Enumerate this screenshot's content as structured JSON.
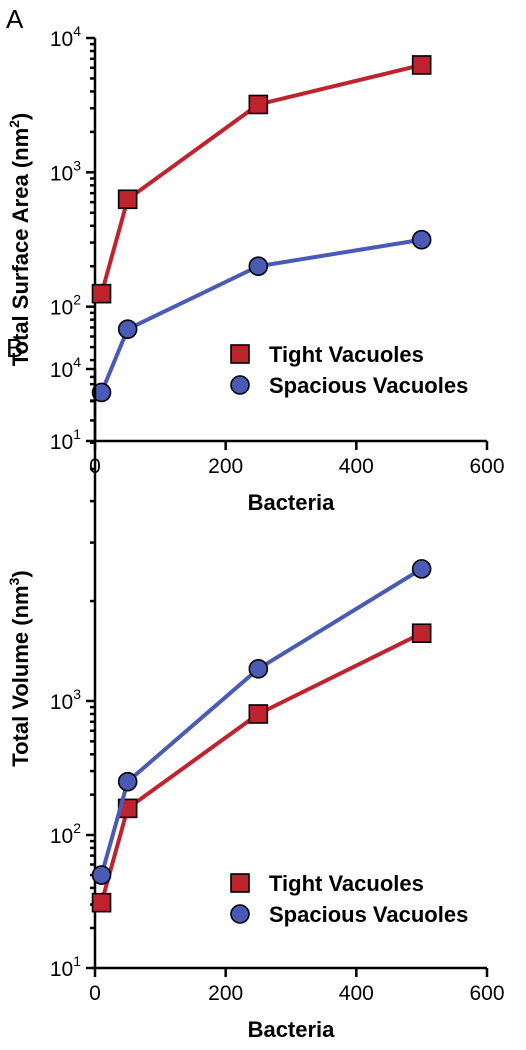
{
  "chart_data": [
    {
      "type": "line",
      "panel": "A",
      "xlabel": "Bacteria",
      "ylabel": "Total Surface Area (nm",
      "ylabel_sup": "2",
      "ylabel_end": ")",
      "xlim": [
        0,
        600
      ],
      "ylim": [
        10,
        10000
      ],
      "yscale": "log",
      "x_ticks": [
        "0",
        "200",
        "400",
        "600"
      ],
      "y_ticks": [
        {
          "base": "10",
          "exp": "1"
        },
        {
          "base": "10",
          "exp": "2"
        },
        {
          "base": "10",
          "exp": "3"
        },
        {
          "base": "10",
          "exp": "4"
        }
      ],
      "legend_position": "lower-right",
      "series": [
        {
          "name": "Tight Vacuoles",
          "marker": "square",
          "color": "#c0222e",
          "x": [
            10,
            50,
            250,
            500
          ],
          "y": [
            125,
            630,
            3200,
            6300
          ]
        },
        {
          "name": "Spacious Vacuoles",
          "marker": "circle",
          "color": "#4a5bb5",
          "x": [
            10,
            50,
            250,
            500
          ],
          "y": [
            23,
            68,
            200,
            315
          ]
        }
      ]
    },
    {
      "type": "line",
      "panel": "B",
      "xlabel": "Bacteria",
      "ylabel": "Total Volume (nm",
      "ylabel_sup": "3",
      "ylabel_end": ")",
      "xlim": [
        0,
        600
      ],
      "ylim": [
        10,
        10000
      ],
      "yscale": "log",
      "x_ticks": [
        "0",
        "200",
        "400",
        "600"
      ],
      "y_ticks": [
        {
          "base": "10",
          "exp": "1"
        },
        {
          "base": "10",
          "exp": "2"
        },
        {
          "base": "10",
          "exp": "3"
        },
        {
          "base": "10",
          "exp": "4"
        }
      ],
      "legend_position": "lower-right",
      "series": [
        {
          "name": "Tight Vacuoles",
          "marker": "square",
          "color": "#c0222e",
          "x": [
            10,
            50,
            250,
            500
          ],
          "y": [
            31,
            158,
            800,
            1600
          ]
        },
        {
          "name": "Spacious Vacuoles",
          "marker": "circle",
          "color": "#4a5bb5",
          "x": [
            10,
            50,
            250,
            500
          ],
          "y": [
            50,
            250,
            1250,
            2500
          ]
        }
      ]
    }
  ]
}
